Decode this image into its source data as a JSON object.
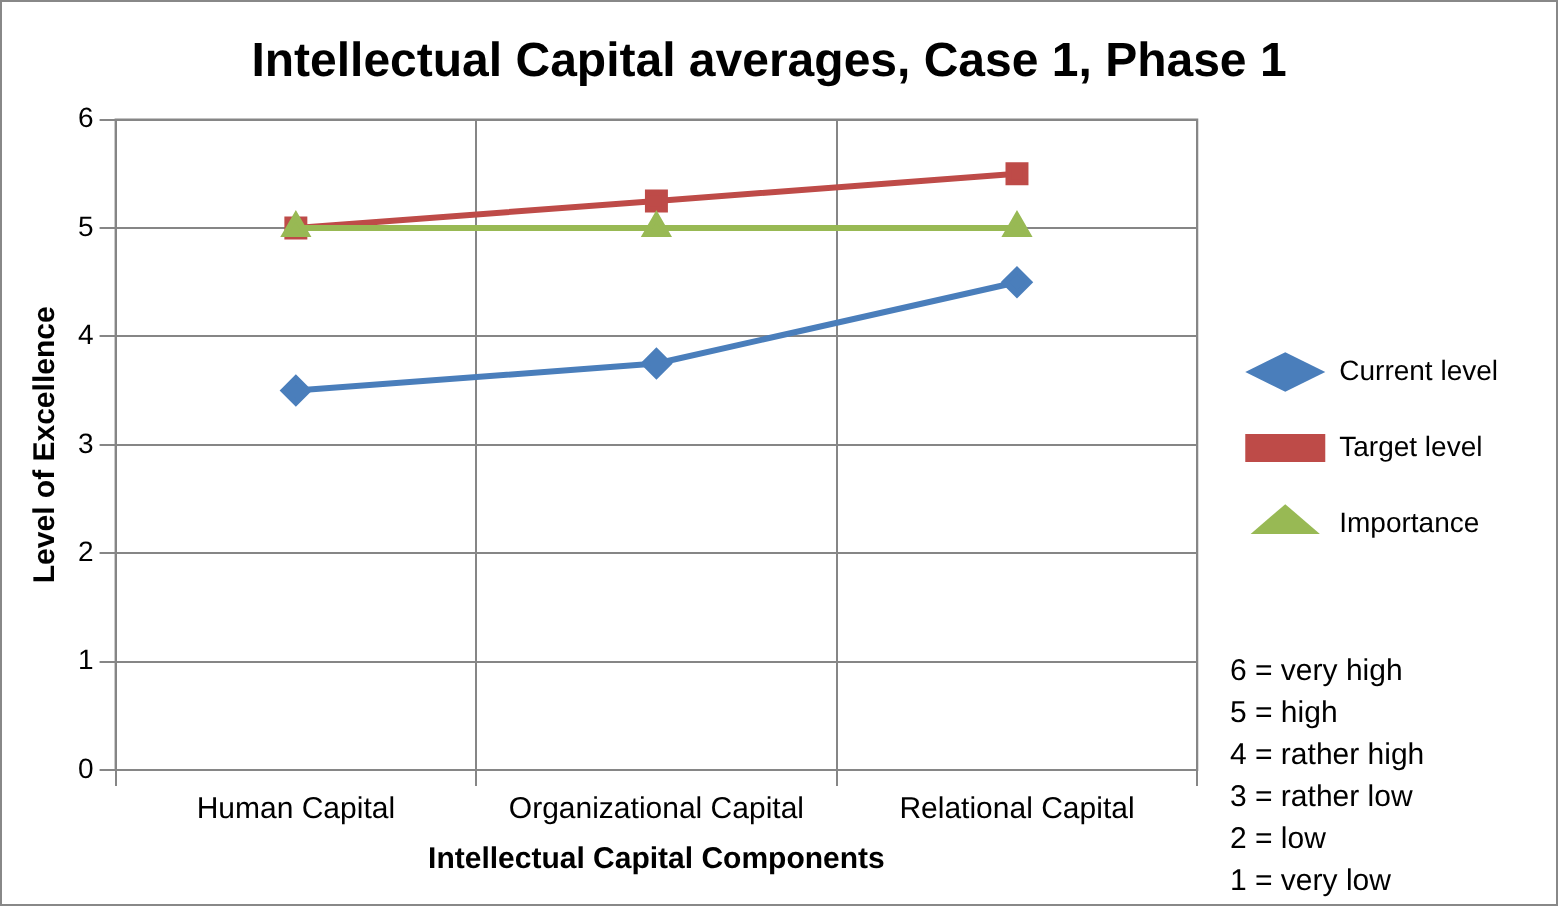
{
  "chart_data": {
    "type": "line",
    "title": "Intellectual Capital averages, Case 1, Phase 1",
    "xlabel": "Intellectual Capital Components",
    "ylabel": "Level of Excellence",
    "categories": [
      "Human Capital",
      "Organizational Capital",
      "Relational Capital"
    ],
    "series": [
      {
        "name": "Current level",
        "color": "#4a7ebb",
        "marker": "diamond",
        "values": [
          3.5,
          3.75,
          4.5
        ]
      },
      {
        "name": "Target level",
        "color": "#be4b48",
        "marker": "square",
        "values": [
          5,
          5.25,
          5.5
        ]
      },
      {
        "name": "Importance",
        "color": "#98b954",
        "marker": "triangle",
        "values": [
          5,
          5,
          5
        ]
      }
    ],
    "ylim": [
      0,
      6
    ],
    "yticks": [
      0,
      1,
      2,
      3,
      4,
      5,
      6
    ],
    "grid": true,
    "legend": "right",
    "line_style": "solid",
    "annotations": [
      "6 = very high",
      "5 = high",
      "4 = rather high",
      "3 = rather low",
      "2 = low",
      "1 = very low"
    ]
  }
}
